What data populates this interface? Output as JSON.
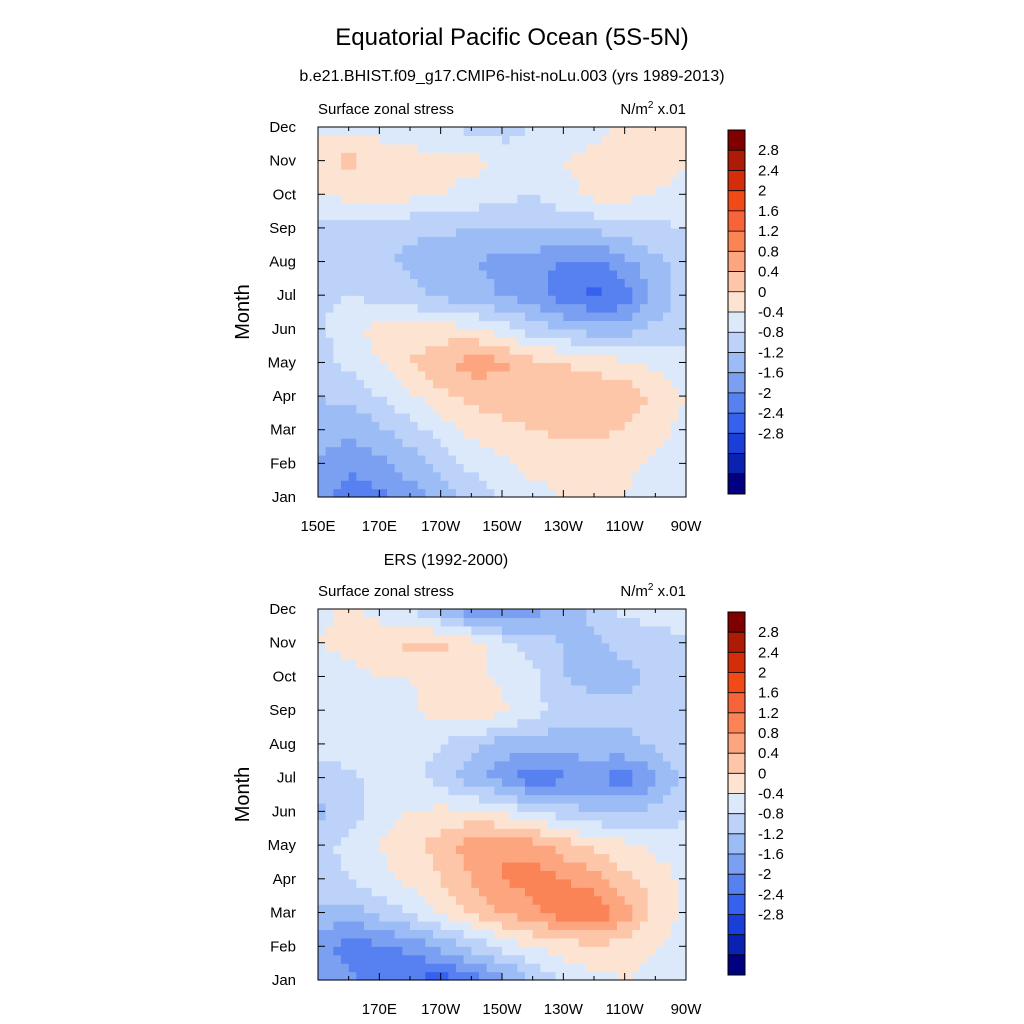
{
  "page": {
    "title": "Equatorial Pacific Ocean (5S-5N)",
    "subtitle": "b.e21.BHIST.f09_g17.CMIP6-hist-noLu.003 (yrs 1989-2013)"
  },
  "colorbar": {
    "labels": [
      "2.8",
      "2.4",
      "2",
      "1.6",
      "1.2",
      "0.8",
      "0.4",
      "0",
      "-0.4",
      "-0.8",
      "-1.2",
      "-1.6",
      "-2",
      "-2.4",
      "-2.8"
    ],
    "colors": [
      "#7f0000",
      "#ad1a05",
      "#d42d0a",
      "#ef4a18",
      "#f7643a",
      "#fb8456",
      "#fca57e",
      "#fdc6a8",
      "#fde4d2",
      "#dbe9fb",
      "#bcd2f8",
      "#9cbcf5",
      "#7ba0f2",
      "#5780f0",
      "#3660ee",
      "#1a3ed8",
      "#0a22b0",
      "#000080"
    ]
  },
  "chart_data": [
    {
      "type": "heatmap",
      "title": "",
      "left_label": "Surface zonal stress",
      "right_label_main": "N/m",
      "right_label_sup": "2",
      "right_label_tail": " x.01",
      "ylabel": "Month",
      "xlabel": "",
      "x_tick_labels": [
        "150E",
        "170E",
        "170W",
        "150W",
        "130W",
        "110W",
        "90W"
      ],
      "x_tick_lons": [
        150,
        170,
        190,
        210,
        230,
        250,
        270
      ],
      "y_tick_labels": [
        "Jan",
        "Feb",
        "Mar",
        "Apr",
        "May",
        "Jun",
        "Jul",
        "Aug",
        "Sep",
        "Oct",
        "Nov",
        "Dec"
      ],
      "xlim": [
        150,
        270
      ],
      "ylim": [
        1,
        12
      ],
      "units": "N/m^2 x.01",
      "levels": [
        -2.8,
        -2.4,
        -2.0,
        -1.6,
        -1.2,
        -0.8,
        -0.4,
        0,
        0.4,
        0.8,
        1.2,
        1.6,
        2.0,
        2.4,
        2.8
      ],
      "x": [
        150,
        160,
        170,
        180,
        190,
        200,
        210,
        220,
        230,
        240,
        250,
        260,
        270
      ],
      "months": [
        1,
        2,
        3,
        4,
        5,
        6,
        7,
        8,
        9,
        10,
        11,
        12
      ],
      "values": [
        [
          -0.9,
          -1.5,
          -1.3,
          -1.0,
          -0.6,
          -0.3,
          0.1,
          0.3,
          0.4,
          0.4,
          0.4,
          0.2,
          0.1
        ],
        [
          -0.8,
          -1.1,
          -0.9,
          -0.6,
          -0.3,
          0.1,
          0.3,
          0.5,
          0.5,
          0.6,
          0.5,
          0.3,
          0.2
        ],
        [
          -0.6,
          -0.7,
          -0.5,
          -0.2,
          0.2,
          0.5,
          0.7,
          0.8,
          0.9,
          0.9,
          0.8,
          0.5,
          0.3
        ],
        [
          -0.4,
          -0.3,
          0.0,
          0.3,
          0.7,
          0.9,
          1.0,
          1.0,
          1.0,
          1.0,
          1.1,
          0.7,
          0.4
        ],
        [
          -0.2,
          0.1,
          0.4,
          0.8,
          1.1,
          1.4,
          1.3,
          0.9,
          0.8,
          0.7,
          0.5,
          0.3,
          0.1
        ],
        [
          -0.1,
          0.3,
          0.5,
          0.6,
          0.6,
          0.5,
          0.2,
          -0.2,
          -0.4,
          -0.6,
          -0.6,
          -0.3,
          -0.1
        ],
        [
          -0.1,
          0.0,
          -0.1,
          -0.3,
          -0.5,
          -0.7,
          -0.8,
          -1.0,
          -1.4,
          -1.7,
          -1.5,
          -0.7,
          -0.2
        ],
        [
          -0.1,
          -0.2,
          -0.3,
          -0.5,
          -0.7,
          -0.8,
          -0.9,
          -1.0,
          -1.3,
          -1.3,
          -0.9,
          -0.5,
          -0.2
        ],
        [
          -0.2,
          -0.1,
          -0.2,
          -0.3,
          -0.3,
          -0.4,
          -0.4,
          -0.4,
          -0.3,
          -0.3,
          -0.2,
          -0.1,
          0.0
        ],
        [
          0.4,
          0.5,
          0.5,
          0.5,
          0.4,
          0.3,
          0.1,
          0.0,
          0.3,
          0.5,
          0.5,
          0.4,
          0.3
        ],
        [
          0.7,
          0.9,
          0.7,
          0.6,
          0.5,
          0.5,
          0.3,
          0.2,
          0.4,
          0.5,
          0.6,
          0.5,
          0.4
        ],
        [
          0.2,
          0.3,
          0.2,
          0.1,
          0.0,
          -0.1,
          -0.2,
          0.0,
          0.2,
          0.3,
          0.5,
          0.5,
          0.4
        ]
      ]
    },
    {
      "type": "heatmap",
      "title": "ERS (1992-2000)",
      "left_label": "Surface zonal stress",
      "right_label_main": "N/m",
      "right_label_sup": "2",
      "right_label_tail": " x.01",
      "ylabel": "Month",
      "xlabel": "",
      "x_tick_labels": [
        "170E",
        "170W",
        "150W",
        "130W",
        "110W",
        "90W"
      ],
      "x_tick_lons": [
        170,
        190,
        210,
        230,
        250,
        270
      ],
      "y_tick_labels": [
        "Jan",
        "Feb",
        "Mar",
        "Apr",
        "May",
        "Jun",
        "Jul",
        "Aug",
        "Sep",
        "Oct",
        "Nov",
        "Dec"
      ],
      "xlim": [
        150,
        270
      ],
      "ylim": [
        1,
        12
      ],
      "units": "N/m^2 x.01",
      "levels": [
        -2.8,
        -2.4,
        -2.0,
        -1.6,
        -1.2,
        -0.8,
        -0.4,
        0,
        0.4,
        0.8,
        1.2,
        1.6,
        2.0,
        2.4,
        2.8
      ],
      "x": [
        150,
        160,
        170,
        180,
        190,
        200,
        210,
        220,
        230,
        240,
        250,
        260,
        270
      ],
      "months": [
        1,
        2,
        3,
        4,
        5,
        6,
        7,
        8,
        9,
        10,
        11,
        12
      ],
      "values": [
        [
          -0.9,
          -1.1,
          -1.5,
          -1.6,
          -1.8,
          -1.5,
          -1.0,
          -0.4,
          0.1,
          0.3,
          0.4,
          0.3,
          0.1
        ],
        [
          -1.0,
          -1.4,
          -1.3,
          -1.1,
          -0.7,
          -0.3,
          0.1,
          0.4,
          0.6,
          0.7,
          0.6,
          0.4,
          0.2
        ],
        [
          -0.5,
          -0.6,
          -0.3,
          0.0,
          0.4,
          0.8,
          1.2,
          1.5,
          1.8,
          2.0,
          1.4,
          0.7,
          0.3
        ],
        [
          -0.2,
          0.0,
          0.3,
          0.5,
          0.8,
          1.2,
          1.6,
          1.8,
          1.6,
          1.4,
          0.9,
          0.6,
          0.3
        ],
        [
          -0.1,
          0.1,
          0.4,
          0.6,
          1.0,
          1.4,
          1.6,
          1.4,
          1.0,
          0.7,
          0.5,
          0.3,
          0.2
        ],
        [
          -0.5,
          -0.2,
          0.2,
          0.4,
          0.5,
          0.5,
          0.3,
          0.0,
          -0.2,
          -0.4,
          -0.4,
          -0.3,
          -0.1
        ],
        [
          -0.2,
          -0.1,
          0.1,
          0.2,
          -0.2,
          -0.6,
          -1.0,
          -1.5,
          -1.3,
          -1.2,
          -1.4,
          -0.9,
          -0.3
        ],
        [
          0.1,
          0.3,
          0.3,
          0.2,
          0.0,
          -0.3,
          -0.6,
          -0.7,
          -0.6,
          -0.5,
          -0.5,
          -0.3,
          -0.1
        ],
        [
          0.3,
          0.4,
          0.3,
          0.3,
          0.6,
          0.8,
          0.5,
          0.2,
          -0.2,
          -0.3,
          -0.3,
          -0.2,
          0.0
        ],
        [
          0.2,
          0.3,
          0.4,
          0.4,
          0.5,
          0.5,
          0.3,
          0.1,
          -0.4,
          -0.5,
          -0.5,
          -0.3,
          0.0
        ],
        [
          0.4,
          0.5,
          0.7,
          0.9,
          0.9,
          0.6,
          0.2,
          -0.2,
          -0.4,
          -0.5,
          -0.3,
          -0.2,
          0.0
        ],
        [
          0.3,
          0.5,
          0.2,
          0.0,
          -0.6,
          -1.1,
          -1.4,
          -1.0,
          -0.6,
          -0.3,
          0.1,
          0.2,
          0.1
        ]
      ]
    }
  ]
}
